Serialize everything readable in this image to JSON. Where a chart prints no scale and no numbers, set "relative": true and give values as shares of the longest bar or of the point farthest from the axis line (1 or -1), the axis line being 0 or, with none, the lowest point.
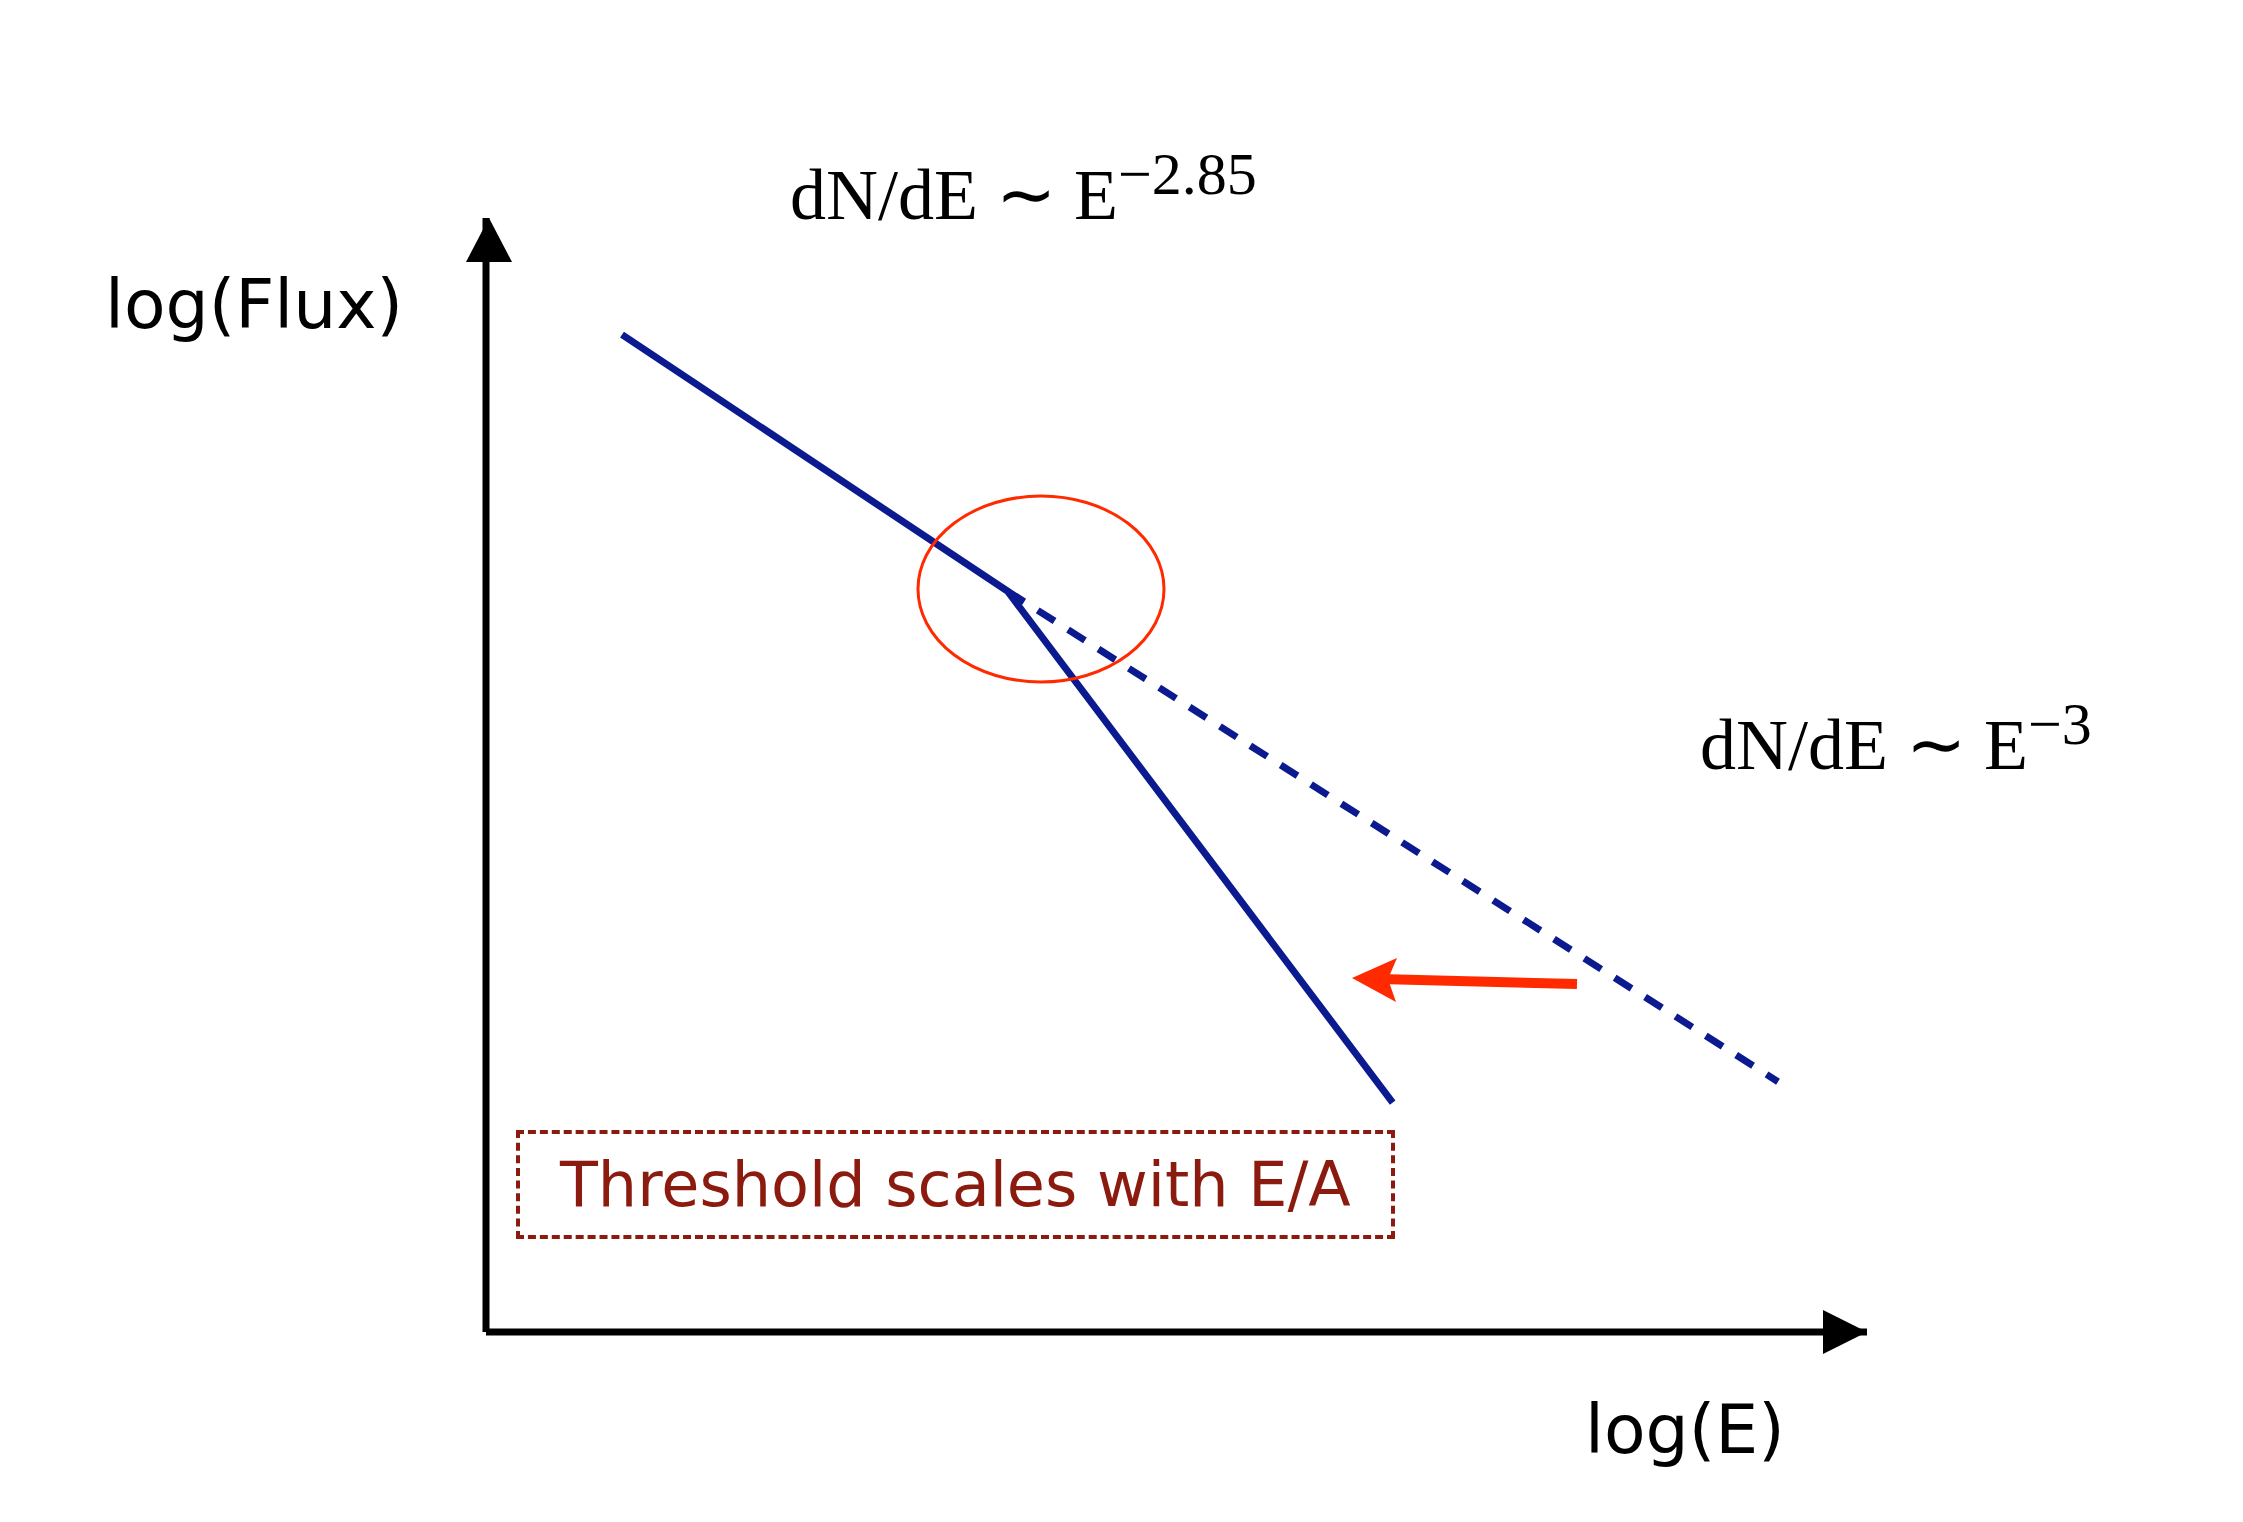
{
  "chart_data": {
    "type": "line",
    "relative": true,
    "xlabel": "log(E)",
    "ylabel": "log(Flux)",
    "color": "#0b1a8f",
    "categories": [
      null,
      null,
      null,
      null
    ],
    "series": [
      {
        "line_style": "solid",
        "values": [
          1,
          0.743,
          0.23,
          null
        ]
      },
      {
        "line_style": "dashed",
        "values": [
          null,
          0.743,
          null,
          0.251
        ]
      }
    ],
    "annotations": [
      "dN/dE ∼ E$^{−2.85}$",
      "dN/dE ∼ E$^{−3}$",
      "Threshold scales with E/A"
    ]
  }
}
